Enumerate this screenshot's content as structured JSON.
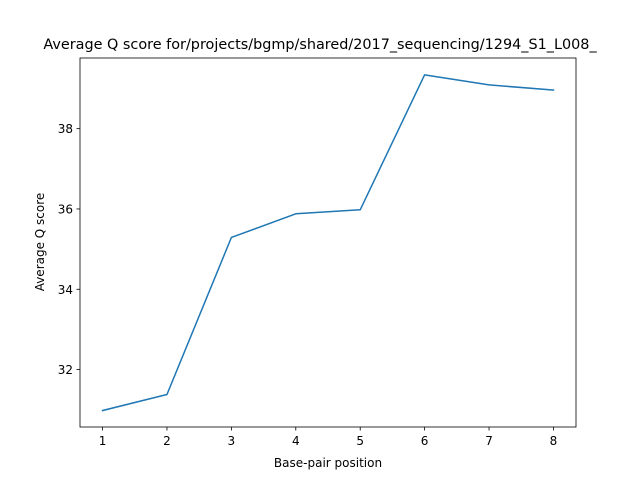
{
  "chart_data": {
    "type": "line",
    "title": "Average Q score for/projects/bgmp/shared/2017_sequencing/1294_S1_L008_",
    "xlabel": "Base-pair position",
    "ylabel": "Average Q score",
    "x": [
      1,
      2,
      3,
      4,
      5,
      6,
      7,
      8
    ],
    "series": [
      {
        "values": [
          30.98,
          31.38,
          35.29,
          35.88,
          35.98,
          39.34,
          39.09,
          38.96
        ],
        "color": "#1f77b4"
      }
    ],
    "xticks": [
      "1",
      "2",
      "3",
      "4",
      "5",
      "6",
      "7",
      "8"
    ],
    "yticks": [
      "32",
      "34",
      "36",
      "38"
    ],
    "xlim": [
      0.65,
      8.35
    ],
    "ylim": [
      30.57,
      39.76
    ],
    "grid": false,
    "legend": "none"
  }
}
